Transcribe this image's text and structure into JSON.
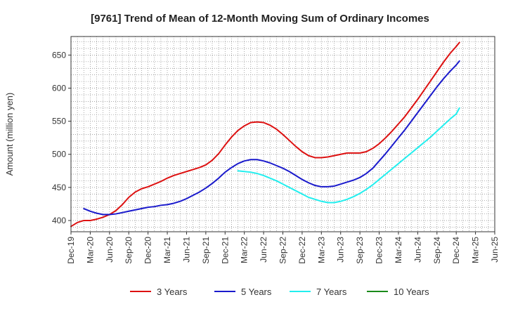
{
  "chart_data": {
    "type": "line",
    "title": "[9761]  Trend of Mean of 12-Month Moving Sum of Ordinary Incomes",
    "xlabel": "",
    "ylabel": "Amount (million yen)",
    "ylim": [
      383,
      678
    ],
    "yticks": [
      400,
      450,
      500,
      550,
      600,
      650
    ],
    "xlim": [
      0,
      66
    ],
    "xticks": [
      {
        "label": "Dec-19",
        "x": 0
      },
      {
        "label": "Mar-20",
        "x": 3
      },
      {
        "label": "Jun-20",
        "x": 6
      },
      {
        "label": "Sep-20",
        "x": 9
      },
      {
        "label": "Dec-20",
        "x": 12
      },
      {
        "label": "Mar-21",
        "x": 15
      },
      {
        "label": "Jun-21",
        "x": 18
      },
      {
        "label": "Sep-21",
        "x": 21
      },
      {
        "label": "Dec-21",
        "x": 24
      },
      {
        "label": "Mar-22",
        "x": 27
      },
      {
        "label": "Jun-22",
        "x": 30
      },
      {
        "label": "Sep-22",
        "x": 33
      },
      {
        "label": "Dec-22",
        "x": 36
      },
      {
        "label": "Mar-23",
        "x": 39
      },
      {
        "label": "Jun-23",
        "x": 42
      },
      {
        "label": "Sep-23",
        "x": 45
      },
      {
        "label": "Dec-23",
        "x": 48
      },
      {
        "label": "Mar-24",
        "x": 51
      },
      {
        "label": "Jun-24",
        "x": 54
      },
      {
        "label": "Sep-24",
        "x": 57
      },
      {
        "label": "Dec-24",
        "x": 60
      },
      {
        "label": "Mar-25",
        "x": 63
      },
      {
        "label": "Jun-25",
        "x": 66
      }
    ],
    "grid": true,
    "legend_position": "bottom",
    "series": [
      {
        "name": "3 Years",
        "color": "#dd1111",
        "points": [
          [
            0,
            391
          ],
          [
            1,
            397
          ],
          [
            2,
            400
          ],
          [
            3,
            400
          ],
          [
            4,
            402
          ],
          [
            5,
            405
          ],
          [
            6,
            409
          ],
          [
            7,
            415
          ],
          [
            8,
            424
          ],
          [
            9,
            435
          ],
          [
            10,
            443
          ],
          [
            11,
            448
          ],
          [
            12,
            451
          ],
          [
            13,
            455
          ],
          [
            14,
            459
          ],
          [
            15,
            464
          ],
          [
            16,
            468
          ],
          [
            17,
            471
          ],
          [
            18,
            474
          ],
          [
            19,
            477
          ],
          [
            20,
            480
          ],
          [
            21,
            484
          ],
          [
            22,
            491
          ],
          [
            23,
            501
          ],
          [
            24,
            514
          ],
          [
            25,
            526
          ],
          [
            26,
            536
          ],
          [
            27,
            543
          ],
          [
            28,
            548
          ],
          [
            29,
            549
          ],
          [
            30,
            548
          ],
          [
            31,
            544
          ],
          [
            32,
            538
          ],
          [
            33,
            530
          ],
          [
            34,
            521
          ],
          [
            35,
            512
          ],
          [
            36,
            504
          ],
          [
            37,
            498
          ],
          [
            38,
            495
          ],
          [
            39,
            495
          ],
          [
            40,
            496
          ],
          [
            41,
            498
          ],
          [
            42,
            500
          ],
          [
            43,
            502
          ],
          [
            44,
            502
          ],
          [
            45,
            502
          ],
          [
            46,
            504
          ],
          [
            47,
            509
          ],
          [
            48,
            516
          ],
          [
            49,
            525
          ],
          [
            50,
            535
          ],
          [
            51,
            546
          ],
          [
            52,
            557
          ],
          [
            53,
            570
          ],
          [
            54,
            583
          ],
          [
            55,
            597
          ],
          [
            56,
            611
          ],
          [
            57,
            625
          ],
          [
            58,
            639
          ],
          [
            59,
            652
          ],
          [
            60,
            663
          ],
          [
            60.5,
            669
          ]
        ]
      },
      {
        "name": "5 Years",
        "color": "#1a1acc",
        "points": [
          [
            2,
            418
          ],
          [
            3,
            414
          ],
          [
            4,
            411
          ],
          [
            5,
            409
          ],
          [
            6,
            409
          ],
          [
            7,
            410
          ],
          [
            8,
            412
          ],
          [
            9,
            414
          ],
          [
            10,
            416
          ],
          [
            11,
            418
          ],
          [
            12,
            420
          ],
          [
            13,
            421
          ],
          [
            14,
            423
          ],
          [
            15,
            424
          ],
          [
            16,
            426
          ],
          [
            17,
            429
          ],
          [
            18,
            433
          ],
          [
            19,
            438
          ],
          [
            20,
            443
          ],
          [
            21,
            449
          ],
          [
            22,
            456
          ],
          [
            23,
            464
          ],
          [
            24,
            473
          ],
          [
            25,
            480
          ],
          [
            26,
            486
          ],
          [
            27,
            490
          ],
          [
            28,
            492
          ],
          [
            29,
            492
          ],
          [
            30,
            490
          ],
          [
            31,
            487
          ],
          [
            32,
            483
          ],
          [
            33,
            479
          ],
          [
            34,
            474
          ],
          [
            35,
            468
          ],
          [
            36,
            462
          ],
          [
            37,
            457
          ],
          [
            38,
            453
          ],
          [
            39,
            451
          ],
          [
            40,
            451
          ],
          [
            41,
            452
          ],
          [
            42,
            455
          ],
          [
            43,
            458
          ],
          [
            44,
            461
          ],
          [
            45,
            465
          ],
          [
            46,
            471
          ],
          [
            47,
            479
          ],
          [
            48,
            490
          ],
          [
            49,
            501
          ],
          [
            50,
            513
          ],
          [
            51,
            525
          ],
          [
            52,
            537
          ],
          [
            53,
            550
          ],
          [
            54,
            563
          ],
          [
            55,
            576
          ],
          [
            56,
            589
          ],
          [
            57,
            602
          ],
          [
            58,
            614
          ],
          [
            59,
            625
          ],
          [
            60,
            635
          ],
          [
            60.5,
            641
          ]
        ]
      },
      {
        "name": "7 Years",
        "color": "#22eeee",
        "points": [
          [
            26,
            475
          ],
          [
            27,
            474
          ],
          [
            28,
            473
          ],
          [
            29,
            471
          ],
          [
            30,
            468
          ],
          [
            31,
            464
          ],
          [
            32,
            460
          ],
          [
            33,
            455
          ],
          [
            34,
            450
          ],
          [
            35,
            445
          ],
          [
            36,
            440
          ],
          [
            37,
            435
          ],
          [
            38,
            432
          ],
          [
            39,
            429
          ],
          [
            40,
            427
          ],
          [
            41,
            427
          ],
          [
            42,
            429
          ],
          [
            43,
            432
          ],
          [
            44,
            436
          ],
          [
            45,
            441
          ],
          [
            46,
            447
          ],
          [
            47,
            454
          ],
          [
            48,
            462
          ],
          [
            49,
            470
          ],
          [
            50,
            478
          ],
          [
            51,
            486
          ],
          [
            52,
            494
          ],
          [
            53,
            502
          ],
          [
            54,
            510
          ],
          [
            55,
            518
          ],
          [
            56,
            526
          ],
          [
            57,
            535
          ],
          [
            58,
            544
          ],
          [
            59,
            553
          ],
          [
            60,
            561
          ],
          [
            60.5,
            570
          ]
        ]
      },
      {
        "name": "10 Years",
        "color": "#1a8a1a",
        "points": []
      }
    ]
  }
}
